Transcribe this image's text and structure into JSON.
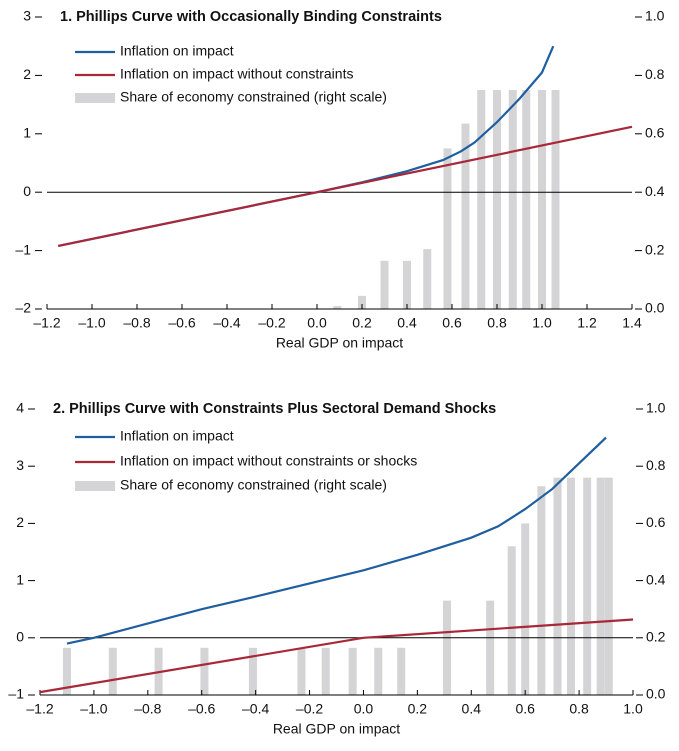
{
  "chart_data": [
    {
      "type": "combo",
      "title": "1. Phillips Curve with Occasionally Binding Constraints",
      "xlabel": "Real GDP on impact",
      "xlim": [
        -1.2,
        1.4
      ],
      "xticks": [
        {
          "value": -1.2,
          "label": "–1.2"
        },
        {
          "value": -1.0,
          "label": "–1.0"
        },
        {
          "value": -0.8,
          "label": "–0.8"
        },
        {
          "value": -0.6,
          "label": "–0.6"
        },
        {
          "value": -0.4,
          "label": "–0.4"
        },
        {
          "value": -0.2,
          "label": "–0.2"
        },
        {
          "value": 0,
          "label": "0.0"
        },
        0.2,
        0.4,
        0.6,
        0.8,
        {
          "value": 1,
          "label": "1.0"
        },
        1.2,
        1.4
      ],
      "ylim": [
        -2,
        3
      ],
      "yticks": [
        {
          "value": -2,
          "label": "–2"
        },
        {
          "value": -1,
          "label": "–1"
        },
        0,
        1,
        2,
        3
      ],
      "y2lim": [
        0,
        1
      ],
      "y2ticks": [
        {
          "value": 0,
          "label": "0.0"
        },
        0.2,
        0.4,
        0.6,
        0.8,
        {
          "value": 1,
          "label": "1.0"
        }
      ],
      "series": [
        {
          "name": "Inflation on impact",
          "kind": "line",
          "color": "#1f5fa0",
          "x": [
            -1.15,
            -0.5,
            0,
            0.2,
            0.4,
            0.56,
            0.64,
            0.7,
            0.8,
            0.9,
            1.0,
            1.05
          ],
          "values": [
            -0.92,
            -0.4,
            0,
            0.17,
            0.36,
            0.55,
            0.7,
            0.85,
            1.2,
            1.6,
            2.05,
            2.5
          ]
        },
        {
          "name": "Inflation on impact without constraints",
          "kind": "line",
          "color": "#a8283a",
          "x": [
            -1.15,
            1.4
          ],
          "values": [
            -0.92,
            1.12
          ]
        },
        {
          "name": "Share of economy constrained (right scale)",
          "kind": "bar",
          "axis": "y2",
          "color": "#d4d4d6",
          "x": [
            0.09,
            0.2,
            0.3,
            0.4,
            0.49,
            0.58,
            0.66,
            0.73,
            0.8,
            0.87,
            0.93,
            1.0,
            1.06
          ],
          "values": [
            0.01,
            0.045,
            0.165,
            0.165,
            0.205,
            0.55,
            0.635,
            0.75,
            0.75,
            0.75,
            0.75,
            0.75,
            0.75
          ]
        }
      ]
    },
    {
      "type": "combo",
      "title": "2. Phillips Curve with Constraints Plus Sectoral Demand Shocks",
      "xlabel": "Real GDP on impact",
      "xlim": [
        -1.2,
        1.0
      ],
      "xticks": [
        {
          "value": -1.2,
          "label": "–1.2"
        },
        {
          "value": -1.0,
          "label": "–1.0"
        },
        {
          "value": -0.8,
          "label": "–0.8"
        },
        {
          "value": -0.6,
          "label": "–0.6"
        },
        {
          "value": -0.4,
          "label": "–0.4"
        },
        {
          "value": -0.2,
          "label": "–0.2"
        },
        {
          "value": 0,
          "label": "0.0"
        },
        0.2,
        0.4,
        0.6,
        0.8,
        {
          "value": 1,
          "label": "1.0"
        }
      ],
      "ylim": [
        -1,
        4
      ],
      "yticks": [
        {
          "value": -1,
          "label": "–1"
        },
        0,
        1,
        2,
        3,
        4
      ],
      "y2lim": [
        0,
        1
      ],
      "y2ticks": [
        {
          "value": 0,
          "label": "0.0"
        },
        0.2,
        0.4,
        0.6,
        0.8,
        {
          "value": 1,
          "label": "1.0"
        }
      ],
      "series": [
        {
          "name": "Inflation on impact",
          "kind": "line",
          "color": "#1f5fa0",
          "x": [
            -1.1,
            -1.0,
            -0.6,
            -0.4,
            -0.2,
            0,
            0.2,
            0.4,
            0.5,
            0.6,
            0.7,
            0.8,
            0.9
          ],
          "values": [
            -0.1,
            0.0,
            0.5,
            0.72,
            0.95,
            1.18,
            1.45,
            1.75,
            1.95,
            2.25,
            2.6,
            3.05,
            3.5
          ]
        },
        {
          "name": "Inflation on impact without constraints or shocks",
          "kind": "line",
          "color": "#a8283a",
          "x": [
            -1.2,
            0,
            1.0
          ],
          "values": [
            -0.95,
            0,
            0.32
          ]
        },
        {
          "name": "Share of economy constrained (right scale)",
          "kind": "bar",
          "axis": "y2",
          "color": "#d4d4d6",
          "x": [
            -1.1,
            -0.93,
            -0.76,
            -0.59,
            -0.41,
            -0.23,
            -0.14,
            -0.04,
            0.055,
            0.14,
            0.31,
            0.47,
            0.55,
            0.6,
            0.66,
            0.72,
            0.77,
            0.83,
            0.88,
            0.91
          ],
          "values": [
            0.165,
            0.165,
            0.165,
            0.165,
            0.165,
            0.165,
            0.165,
            0.165,
            0.165,
            0.165,
            0.33,
            0.33,
            0.52,
            0.6,
            0.73,
            0.76,
            0.76,
            0.76,
            0.76,
            0.76
          ]
        }
      ]
    }
  ]
}
